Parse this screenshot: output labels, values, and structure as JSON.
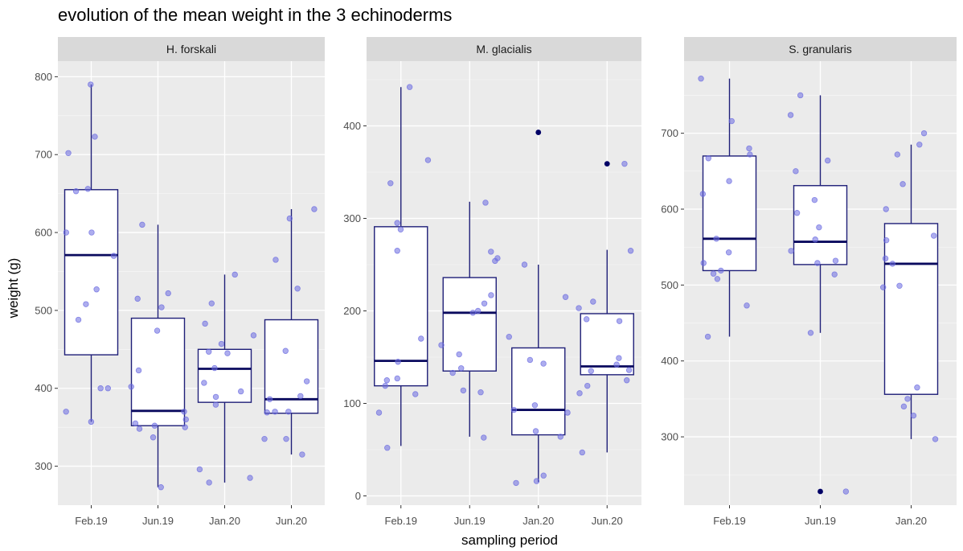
{
  "title": "evolution of the mean weight in the 3 echinoderms",
  "chart_data": {
    "type": "box",
    "xlabel": "sampling period",
    "ylabel": "weight (g)",
    "grid": true,
    "colors": {
      "panel_bg": "#ebebeb",
      "strip_bg": "#d9d9d9",
      "grid": "#ffffff",
      "box_line": "#1f1f78",
      "median": "#0a0a5e",
      "point": "#6a6ae0",
      "outlier": "#000066"
    },
    "facets": [
      {
        "name": "H. forskali",
        "ylim": [
          250,
          820
        ],
        "yticks": [
          300,
          400,
          500,
          600,
          700,
          800
        ],
        "categories": [
          "Feb.19",
          "Jun.19",
          "Jan.20",
          "Jun.20"
        ],
        "boxes": [
          {
            "category": "Feb.19",
            "min": 357,
            "q1": 443,
            "median": 571,
            "q3": 655,
            "max": 790,
            "outliers": [],
            "points": [
              790,
              723,
              702,
              653,
              656,
              600,
              600,
              570,
              527,
              508,
              488,
              400,
              400,
              370,
              357
            ]
          },
          {
            "category": "Jun.19",
            "min": 273,
            "q1": 352,
            "median": 371,
            "q3": 490,
            "max": 610,
            "outliers": [],
            "points": [
              610,
              522,
              515,
              504,
              474,
              423,
              402,
              370,
              360,
              355,
              352,
              350,
              348,
              337,
              273
            ]
          },
          {
            "category": "Jan.20",
            "min": 279,
            "q1": 382,
            "median": 425,
            "q3": 450,
            "max": 546,
            "outliers": [],
            "points": [
              546,
              509,
              483,
              468,
              457,
              447,
              445,
              426,
              407,
              396,
              389,
              379,
              296,
              285,
              279
            ]
          },
          {
            "category": "Jun.20",
            "min": 315,
            "q1": 368,
            "median": 386,
            "q3": 488,
            "max": 630,
            "outliers": [],
            "points": [
              630,
              618,
              565,
              528,
              448,
              409,
              390,
              386,
              370,
              370,
              369,
              335,
              335,
              315
            ]
          }
        ]
      },
      {
        "name": "M. glacialis",
        "ylim": [
          -10,
          470
        ],
        "yticks": [
          0,
          100,
          200,
          300,
          400
        ],
        "categories": [
          "Feb.19",
          "Jun.19",
          "Jan.20",
          "Jun.20"
        ],
        "boxes": [
          {
            "category": "Feb.19",
            "min": 54,
            "q1": 119,
            "median": 146,
            "q3": 291,
            "max": 442,
            "outliers": [],
            "points": [
              442,
              363,
              338,
              295,
              288,
              265,
              170,
              145,
              127,
              125,
              119,
              110,
              90,
              52
            ]
          },
          {
            "category": "Jun.19",
            "min": 64,
            "q1": 135,
            "median": 198,
            "q3": 236,
            "max": 318,
            "outliers": [],
            "points": [
              317,
              264,
              257,
              254,
              217,
              208,
              200,
              198,
              163,
              153,
              138,
              133,
              114,
              112,
              63
            ]
          },
          {
            "category": "Jan.20",
            "min": 15,
            "q1": 66,
            "median": 93,
            "q3": 160,
            "max": 250,
            "outliers": [
              393
            ],
            "points": [
              250,
              215,
              172,
              147,
              143,
              98,
              93,
              90,
              70,
              64,
              22,
              16,
              14
            ]
          },
          {
            "category": "Jun.20",
            "min": 47,
            "q1": 131,
            "median": 140,
            "q3": 197,
            "max": 266,
            "outliers": [
              359
            ],
            "points": [
              359,
              265,
              210,
              203,
              191,
              189,
              149,
              142,
              136,
              135,
              125,
              119,
              111,
              47
            ]
          }
        ]
      },
      {
        "name": "S. granularis",
        "ylim": [
          210,
          795
        ],
        "yticks": [
          300,
          400,
          500,
          600,
          700
        ],
        "categories": [
          "Feb.19",
          "Jun.19",
          "Jan.20"
        ],
        "boxes": [
          {
            "category": "Feb.19",
            "min": 432,
            "q1": 519,
            "median": 561,
            "q3": 670,
            "max": 772,
            "outliers": [],
            "points": [
              772,
              716,
              680,
              672,
              667,
              637,
              620,
              561,
              543,
              529,
              519,
              515,
              508,
              473,
              432
            ]
          },
          {
            "category": "Jun.19",
            "min": 437,
            "q1": 527,
            "median": 557,
            "q3": 631,
            "max": 750,
            "outliers": [
              228
            ],
            "points": [
              750,
              724,
              664,
              650,
              612,
              595,
              576,
              560,
              545,
              532,
              529,
              514,
              437,
              228
            ]
          },
          {
            "category": "Jan.20",
            "min": 297,
            "q1": 356,
            "median": 528,
            "q3": 581,
            "max": 685,
            "outliers": [],
            "points": [
              700,
              685,
              672,
              633,
              600,
              565,
              559,
              535,
              528,
              499,
              497,
              365,
              350,
              340,
              328,
              297
            ]
          }
        ]
      }
    ]
  }
}
